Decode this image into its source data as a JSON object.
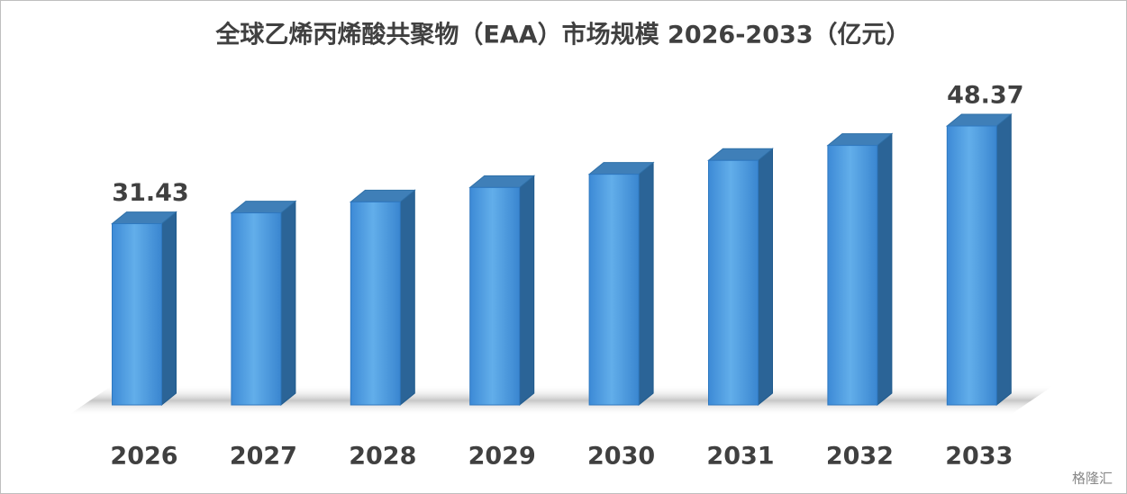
{
  "chart_data": {
    "type": "bar3d",
    "title": "全球乙烯丙烯酸共聚物（EAA）市场规模 2026-2033（亿元）",
    "categories": [
      "2026",
      "2027",
      "2028",
      "2029",
      "2030",
      "2031",
      "2032",
      "2033"
    ],
    "values": [
      31.43,
      33.3,
      35.2,
      37.7,
      40.0,
      42.4,
      45.0,
      48.37
    ],
    "color": "#4a9ae0",
    "watermark": "格隆汇"
  }
}
